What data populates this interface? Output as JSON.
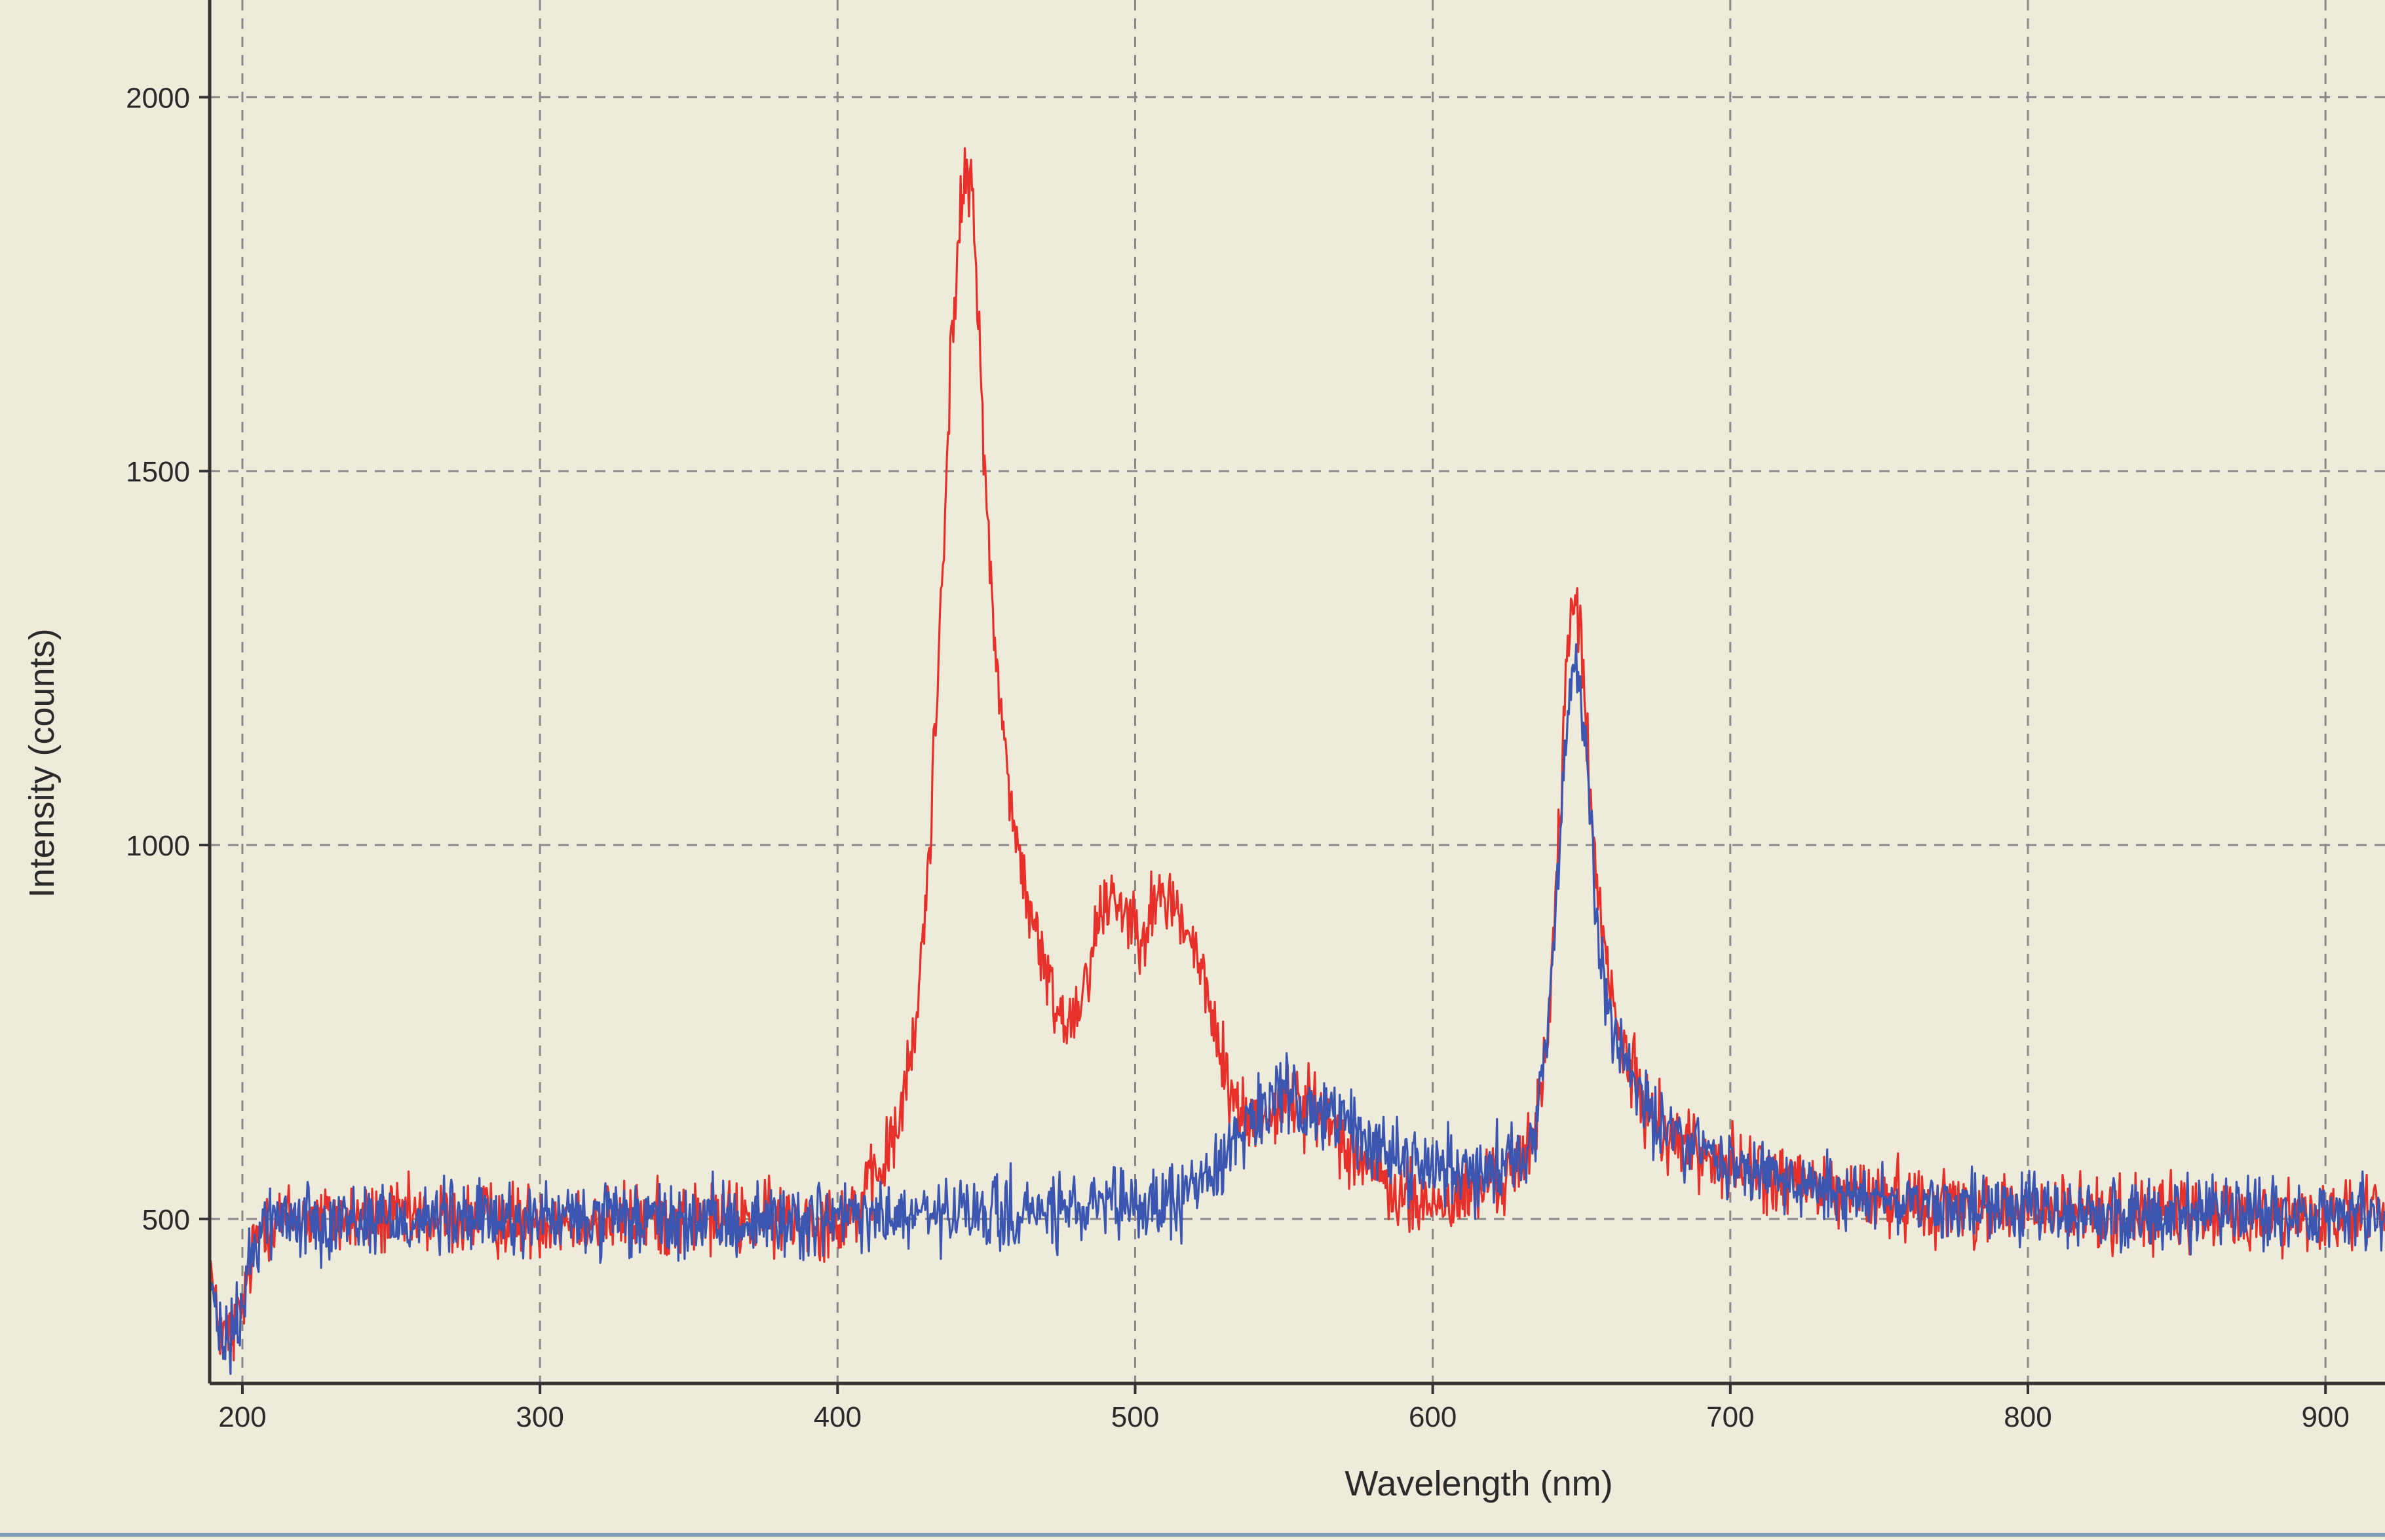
{
  "chart_data": {
    "type": "line",
    "title": "",
    "xlabel": "Wavelength (nm)",
    "ylabel": "Intensity (counts)",
    "xlim": [
      189,
      920
    ],
    "ylim": [
      280,
      2130
    ],
    "x_ticks": [
      200,
      300,
      400,
      500,
      600,
      700,
      800,
      900
    ],
    "y_ticks": [
      500,
      1000,
      1500,
      2000
    ],
    "grid": true,
    "grid_style": "dashed",
    "legend": "none",
    "series": [
      {
        "color": "#e8302a",
        "noise": 38,
        "points": [
          [
            189,
            450
          ],
          [
            191,
            370
          ],
          [
            194,
            340
          ],
          [
            197,
            350
          ],
          [
            200,
            380
          ],
          [
            203,
            450
          ],
          [
            207,
            500
          ],
          [
            250,
            500
          ],
          [
            300,
            500
          ],
          [
            350,
            500
          ],
          [
            400,
            500
          ],
          [
            408,
            520
          ],
          [
            414,
            560
          ],
          [
            420,
            620
          ],
          [
            426,
            740
          ],
          [
            431,
            1000
          ],
          [
            435,
            1350
          ],
          [
            438,
            1650
          ],
          [
            441,
            1820
          ],
          [
            443,
            1900
          ],
          [
            445,
            1880
          ],
          [
            448,
            1650
          ],
          [
            452,
            1300
          ],
          [
            457,
            1100
          ],
          [
            462,
            960
          ],
          [
            467,
            870
          ],
          [
            472,
            800
          ],
          [
            477,
            760
          ],
          [
            482,
            800
          ],
          [
            487,
            890
          ],
          [
            492,
            940
          ],
          [
            497,
            910
          ],
          [
            502,
            890
          ],
          [
            507,
            920
          ],
          [
            512,
            930
          ],
          [
            518,
            880
          ],
          [
            523,
            820
          ],
          [
            528,
            730
          ],
          [
            533,
            660
          ],
          [
            538,
            630
          ],
          [
            545,
            640
          ],
          [
            552,
            660
          ],
          [
            560,
            650
          ],
          [
            568,
            620
          ],
          [
            576,
            580
          ],
          [
            585,
            540
          ],
          [
            595,
            520
          ],
          [
            605,
            520
          ],
          [
            615,
            540
          ],
          [
            625,
            560
          ],
          [
            632,
            580
          ],
          [
            637,
            680
          ],
          [
            641,
            900
          ],
          [
            644,
            1150
          ],
          [
            646,
            1300
          ],
          [
            648,
            1330
          ],
          [
            650,
            1280
          ],
          [
            653,
            1050
          ],
          [
            657,
            870
          ],
          [
            663,
            740
          ],
          [
            670,
            660
          ],
          [
            680,
            610
          ],
          [
            700,
            570
          ],
          [
            730,
            540
          ],
          [
            760,
            525
          ],
          [
            800,
            510
          ],
          [
            850,
            505
          ],
          [
            920,
            505
          ]
        ]
      },
      {
        "color": "#3a56b0",
        "noise": 38,
        "points": [
          [
            189,
            430
          ],
          [
            191,
            360
          ],
          [
            194,
            330
          ],
          [
            197,
            345
          ],
          [
            200,
            380
          ],
          [
            203,
            450
          ],
          [
            207,
            500
          ],
          [
            250,
            500
          ],
          [
            300,
            500
          ],
          [
            350,
            495
          ],
          [
            400,
            500
          ],
          [
            450,
            505
          ],
          [
            480,
            510
          ],
          [
            500,
            515
          ],
          [
            515,
            525
          ],
          [
            525,
            560
          ],
          [
            532,
            600
          ],
          [
            540,
            640
          ],
          [
            550,
            660
          ],
          [
            560,
            650
          ],
          [
            570,
            630
          ],
          [
            580,
            600
          ],
          [
            590,
            580
          ],
          [
            600,
            570
          ],
          [
            610,
            565
          ],
          [
            620,
            570
          ],
          [
            628,
            580
          ],
          [
            634,
            620
          ],
          [
            638,
            720
          ],
          [
            642,
            950
          ],
          [
            645,
            1150
          ],
          [
            647,
            1240
          ],
          [
            649,
            1220
          ],
          [
            652,
            1100
          ],
          [
            655,
            900
          ],
          [
            660,
            760
          ],
          [
            667,
            680
          ],
          [
            675,
            630
          ],
          [
            690,
            590
          ],
          [
            710,
            560
          ],
          [
            740,
            535
          ],
          [
            770,
            520
          ],
          [
            800,
            510
          ],
          [
            850,
            505
          ],
          [
            920,
            505
          ]
        ]
      }
    ]
  }
}
